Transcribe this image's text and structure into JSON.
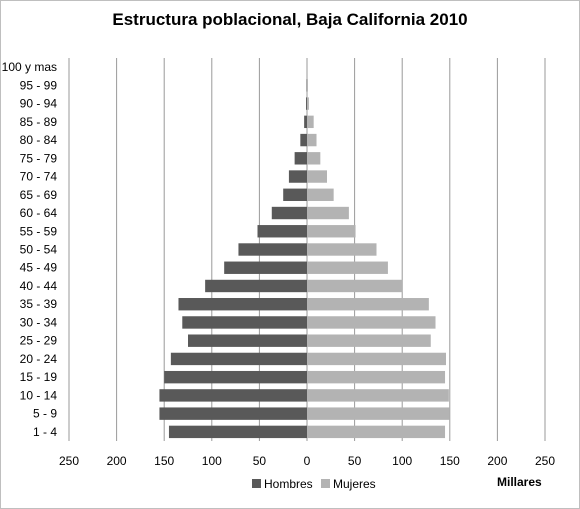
{
  "chart_data": {
    "type": "bar",
    "orientation": "horizontal",
    "title": "Estructura poblacional, Baja California 2010",
    "unit_label": "Millares",
    "categories": [
      "1 - 4",
      "5 - 9",
      "10 - 14",
      "15 - 19",
      "20 - 24",
      "25 - 29",
      "30 - 34",
      "35 - 39",
      "40 - 44",
      "45 - 49",
      "50 - 54",
      "55 - 59",
      "60 - 64",
      "65 - 69",
      "70 - 74",
      "75 - 79",
      "80 - 84",
      "85 - 89",
      "90 - 94",
      "95 - 99",
      "100 y mas"
    ],
    "xticks": [
      "250",
      "200",
      "150",
      "100",
      "50",
      "0",
      "50",
      "100",
      "150",
      "200",
      "250"
    ],
    "xlim": [
      -250,
      250
    ],
    "grid": true,
    "legend_position": "bottom",
    "series": [
      {
        "name": "Hombres",
        "color": "#595959",
        "values": [
          145,
          155,
          155,
          150,
          143,
          125,
          131,
          135,
          107,
          87,
          72,
          52,
          37,
          25,
          19,
          13,
          7,
          3,
          1,
          0.5,
          0
        ]
      },
      {
        "name": "Mujeres",
        "color": "#b3b3b3",
        "values": [
          145,
          150,
          149,
          145,
          146,
          130,
          135,
          128,
          100,
          85,
          73,
          51,
          44,
          28,
          21,
          14,
          10,
          7,
          2,
          1,
          0
        ]
      }
    ]
  }
}
